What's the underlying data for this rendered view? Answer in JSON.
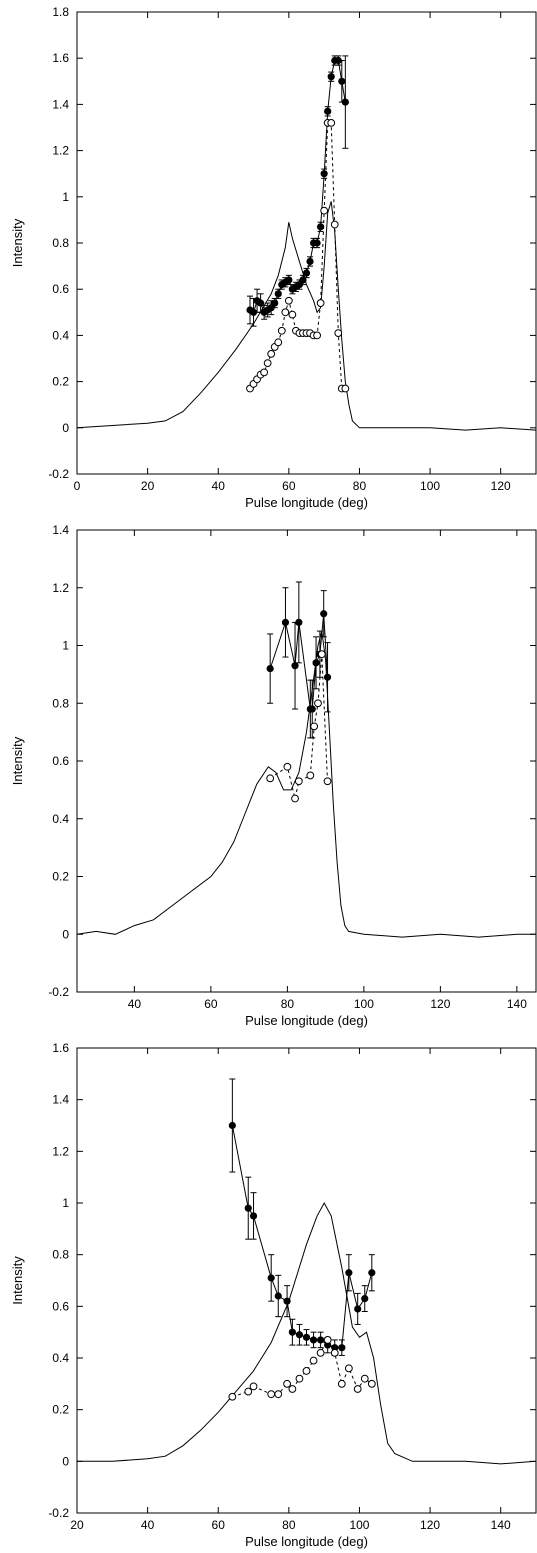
{
  "chart_data": [
    {
      "type": "line",
      "xlabel": "Pulse longitude (deg)",
      "ylabel": "Intensity",
      "xlim": [
        0,
        130
      ],
      "ylim": [
        -0.2,
        1.8
      ],
      "xticks": [
        0,
        20,
        40,
        60,
        80,
        100,
        120
      ],
      "yticks": [
        -0.2,
        0,
        0.2,
        0.4,
        0.6,
        0.8,
        1,
        1.2,
        1.4,
        1.6,
        1.8
      ],
      "xtick_labels": [
        "0",
        "20",
        "40",
        "60",
        "80",
        "100",
        "120"
      ],
      "ytick_labels": [
        "-0.2",
        "0",
        "0.2",
        "0.4",
        "0.6",
        "0.8",
        "1",
        "1.2",
        "1.4",
        "1.6",
        "1.8"
      ],
      "series": [
        {
          "style": "profile-solid",
          "x": [
            0,
            10,
            20,
            25,
            30,
            35,
            40,
            45,
            50,
            55,
            57,
            59,
            60,
            61,
            63,
            65,
            67,
            68,
            69,
            70,
            71,
            72,
            73,
            74,
            75,
            76,
            77,
            78,
            80,
            90,
            100,
            110,
            120,
            130
          ],
          "y": [
            0.0,
            0.01,
            0.02,
            0.03,
            0.07,
            0.15,
            0.24,
            0.34,
            0.45,
            0.58,
            0.66,
            0.78,
            0.89,
            0.82,
            0.72,
            0.62,
            0.55,
            0.5,
            0.52,
            0.7,
            0.93,
            0.98,
            0.85,
            0.6,
            0.38,
            0.2,
            0.1,
            0.03,
            0.0,
            0.0,
            0.0,
            -0.01,
            0.0,
            -0.01
          ]
        },
        {
          "style": "filled-circles-solid",
          "x": [
            49,
            50,
            51,
            52,
            53,
            54,
            55,
            56,
            57,
            58,
            59,
            60,
            61,
            62,
            63,
            64,
            65,
            66,
            67,
            68,
            69,
            70,
            71,
            72,
            73,
            74,
            75,
            76
          ],
          "y": [
            0.51,
            0.5,
            0.55,
            0.54,
            0.5,
            0.51,
            0.52,
            0.54,
            0.58,
            0.62,
            0.63,
            0.64,
            0.6,
            0.61,
            0.62,
            0.64,
            0.67,
            0.72,
            0.8,
            0.8,
            0.87,
            1.1,
            1.37,
            1.52,
            1.59,
            1.59,
            1.5,
            1.41
          ],
          "err": [
            0.06,
            0.06,
            0.05,
            0.04,
            0.03,
            0.03,
            0.03,
            0.02,
            0.02,
            0.02,
            0.02,
            0.02,
            0.02,
            0.02,
            0.02,
            0.02,
            0.02,
            0.02,
            0.02,
            0.02,
            0.02,
            0.02,
            0.02,
            0.02,
            0.02,
            0.02,
            0.09,
            0.2
          ]
        },
        {
          "style": "open-circles-dashed",
          "x": [
            49,
            50,
            51,
            52,
            53,
            54,
            55,
            56,
            57,
            58,
            59,
            60,
            61,
            62,
            63,
            64,
            65,
            66,
            67,
            68,
            69,
            70,
            71,
            72,
            73,
            74,
            75,
            76
          ],
          "y": [
            0.17,
            0.19,
            0.21,
            0.23,
            0.24,
            0.28,
            0.32,
            0.35,
            0.37,
            0.42,
            0.5,
            0.55,
            0.49,
            0.42,
            0.41,
            0.41,
            0.41,
            0.41,
            0.4,
            0.4,
            0.54,
            0.94,
            1.32,
            1.32,
            0.88,
            0.41,
            0.17,
            0.17
          ]
        }
      ]
    },
    {
      "type": "line",
      "xlabel": "Pulse longitude (deg)",
      "ylabel": "Intensity",
      "xlim": [
        25,
        145
      ],
      "ylim": [
        -0.2,
        1.4
      ],
      "xticks": [
        40,
        60,
        80,
        100,
        120,
        140
      ],
      "yticks": [
        -0.2,
        0,
        0.2,
        0.4,
        0.6,
        0.8,
        1,
        1.2,
        1.4
      ],
      "xtick_labels": [
        "40",
        "60",
        "80",
        "100",
        "120",
        "140"
      ],
      "ytick_labels": [
        "-0.2",
        "0",
        "0.2",
        "0.4",
        "0.6",
        "0.8",
        "1",
        "1.2",
        "1.4"
      ],
      "series": [
        {
          "style": "profile-solid",
          "x": [
            25,
            30,
            35,
            40,
            45,
            50,
            55,
            60,
            63,
            66,
            69,
            72,
            75,
            77,
            79,
            81,
            83,
            85,
            87,
            88,
            89,
            90,
            91,
            92,
            93,
            94,
            95,
            96,
            100,
            110,
            120,
            130,
            140,
            145
          ],
          "y": [
            0.0,
            0.01,
            0.0,
            0.03,
            0.05,
            0.1,
            0.15,
            0.2,
            0.25,
            0.32,
            0.42,
            0.52,
            0.58,
            0.56,
            0.5,
            0.5,
            0.56,
            0.7,
            0.9,
            1.0,
            1.05,
            0.95,
            0.7,
            0.45,
            0.25,
            0.1,
            0.03,
            0.01,
            0.0,
            -0.01,
            0.0,
            -0.01,
            0.0,
            0.0
          ]
        },
        {
          "style": "filled-circles-solid",
          "x": [
            75.5,
            79.5,
            82,
            83,
            86,
            86.5,
            87.5,
            88.5,
            89.5,
            90.5
          ],
          "y": [
            0.92,
            1.08,
            0.93,
            1.08,
            0.78,
            0.78,
            0.94,
            0.97,
            1.11,
            0.89
          ],
          "err": [
            0.12,
            0.12,
            0.15,
            0.14,
            0.1,
            0.1,
            0.09,
            0.08,
            0.08,
            0.12
          ]
        },
        {
          "style": "open-circles-dashed",
          "x": [
            75.5,
            80,
            82,
            83,
            86,
            87,
            88,
            89,
            90.5
          ],
          "y": [
            0.54,
            0.58,
            0.47,
            0.53,
            0.55,
            0.72,
            0.8,
            0.97,
            0.53
          ]
        }
      ]
    },
    {
      "type": "line",
      "xlabel": "Pulse longitude (deg)",
      "ylabel": "Intensity",
      "xlim": [
        20,
        150
      ],
      "ylim": [
        -0.2,
        1.6
      ],
      "xticks": [
        20,
        40,
        60,
        80,
        100,
        120,
        140
      ],
      "yticks": [
        -0.2,
        0,
        0.2,
        0.4,
        0.6,
        0.8,
        1,
        1.2,
        1.4,
        1.6
      ],
      "xtick_labels": [
        "20",
        "40",
        "60",
        "80",
        "100",
        "120",
        "140"
      ],
      "ytick_labels": [
        "-0.2",
        "0",
        "0.2",
        "0.4",
        "0.6",
        "0.8",
        "1",
        "1.2",
        "1.4",
        "1.6"
      ],
      "series": [
        {
          "style": "profile-solid",
          "x": [
            20,
            30,
            40,
            45,
            50,
            55,
            60,
            65,
            70,
            75,
            80,
            85,
            88,
            90,
            92,
            95,
            98,
            100,
            102,
            104,
            106,
            108,
            110,
            115,
            120,
            130,
            140,
            150
          ],
          "y": [
            0.0,
            0.0,
            0.01,
            0.02,
            0.06,
            0.12,
            0.19,
            0.27,
            0.35,
            0.46,
            0.62,
            0.84,
            0.95,
            1.0,
            0.95,
            0.75,
            0.52,
            0.48,
            0.5,
            0.4,
            0.22,
            0.07,
            0.03,
            0.0,
            0.0,
            0.0,
            -0.01,
            0.0
          ]
        },
        {
          "style": "filled-circles-solid",
          "x": [
            64,
            68.5,
            70,
            75,
            77,
            79.5,
            81,
            83,
            85,
            87,
            89,
            91,
            93,
            95,
            97,
            99.5,
            101.5,
            103.5
          ],
          "y": [
            1.3,
            0.98,
            0.95,
            0.71,
            0.64,
            0.62,
            0.5,
            0.49,
            0.48,
            0.47,
            0.47,
            0.45,
            0.44,
            0.44,
            0.73,
            0.59,
            0.63,
            0.73
          ],
          "err": [
            0.18,
            0.12,
            0.09,
            0.09,
            0.08,
            0.06,
            0.05,
            0.04,
            0.03,
            0.03,
            0.03,
            0.03,
            0.03,
            0.03,
            0.07,
            0.06,
            0.05,
            0.07
          ]
        },
        {
          "style": "open-circles-dashed",
          "x": [
            64,
            68.5,
            70,
            75,
            77,
            79.5,
            81,
            83,
            85,
            87,
            89,
            91,
            93,
            95,
            97,
            99.5,
            101.5,
            103.5
          ],
          "y": [
            0.25,
            0.27,
            0.29,
            0.26,
            0.26,
            0.3,
            0.28,
            0.32,
            0.35,
            0.39,
            0.42,
            0.47,
            0.42,
            0.3,
            0.36,
            0.28,
            0.32,
            0.3
          ]
        }
      ]
    }
  ]
}
